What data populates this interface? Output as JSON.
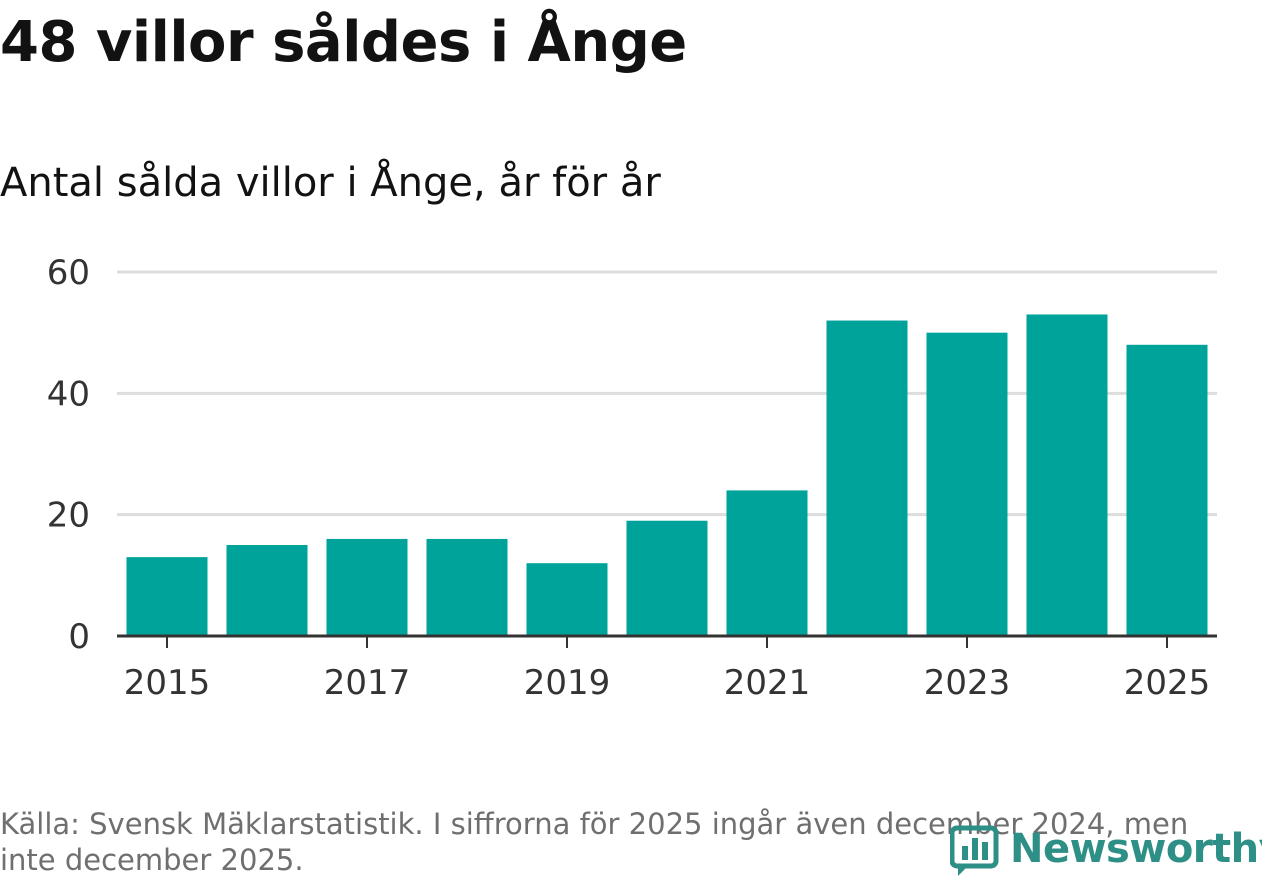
{
  "header": {
    "title": "48 villor såldes i Ånge",
    "subtitle": "Antal sålda villor i Ånge, år för år"
  },
  "footer": {
    "source": "Källa: Svensk Mäklarstatistik. I siffrorna för 2025 ingår även december 2024, men inte december 2025.",
    "logo_text": "Newsworthy"
  },
  "colors": {
    "bar": "#00a39a",
    "gridline": "#dddddd",
    "axis": "#333333",
    "logo": "#2d8f85"
  },
  "chart_data": {
    "type": "bar",
    "title": "48 villor såldes i Ånge",
    "subtitle": "Antal sålda villor i Ånge, år för år",
    "xlabel": "",
    "ylabel": "",
    "categories": [
      "2015",
      "2016",
      "2017",
      "2018",
      "2019",
      "2020",
      "2021",
      "2022",
      "2023",
      "2024",
      "2025"
    ],
    "values": [
      13,
      15,
      16,
      16,
      12,
      19,
      24,
      52,
      50,
      53,
      48
    ],
    "x_tick_labels": [
      "2015",
      "2017",
      "2019",
      "2021",
      "2023",
      "2025"
    ],
    "y_ticks": [
      0,
      20,
      40,
      60
    ],
    "ylim": [
      0,
      60
    ],
    "grid": true,
    "legend": "none"
  }
}
